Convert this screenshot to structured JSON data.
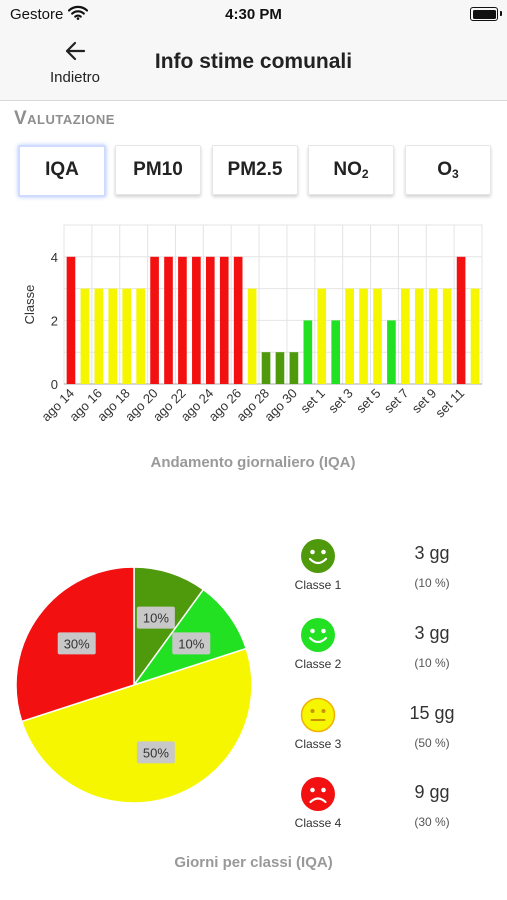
{
  "status_bar": {
    "carrier": "Gestore",
    "time": "4:30 PM"
  },
  "nav": {
    "back_label": "Indietro",
    "title": "Info stime comunali"
  },
  "section": {
    "title": "Valutazione"
  },
  "tabs": [
    {
      "label": "IQA",
      "sub": "",
      "active": true
    },
    {
      "label": "PM10",
      "sub": "",
      "active": false
    },
    {
      "label": "PM2.5",
      "sub": "",
      "active": false
    },
    {
      "label": "NO",
      "sub": "2",
      "active": false
    },
    {
      "label": "O",
      "sub": "3",
      "active": false
    }
  ],
  "colors": {
    "classe_1": "#4f9a0c",
    "classe_2": "#22e022",
    "classe_3": "#f6f600",
    "classe_4": "#f21010"
  },
  "chart_data": [
    {
      "type": "bar",
      "title": "Andamento giornaliero (IQA)",
      "ylabel": "Classe",
      "ylim": [
        0,
        5
      ],
      "yticks": [
        0,
        2,
        4
      ],
      "grid": true,
      "x_tick_labels": [
        "ago 14",
        "ago 16",
        "ago 18",
        "ago 20",
        "ago 22",
        "ago 24",
        "ago 26",
        "ago 28",
        "ago 30",
        "set 1",
        "set 3",
        "set 5",
        "set 7",
        "set 9",
        "set 11"
      ],
      "categories": [
        "ago 14",
        "ago 15",
        "ago 16",
        "ago 17",
        "ago 18",
        "ago 19",
        "ago 20",
        "ago 21",
        "ago 22",
        "ago 23",
        "ago 24",
        "ago 25",
        "ago 26",
        "ago 27",
        "ago 28",
        "ago 29",
        "ago 30",
        "ago 31",
        "set 1",
        "set 2",
        "set 3",
        "set 4",
        "set 5",
        "set 6",
        "set 7",
        "set 8",
        "set 9",
        "set 10",
        "set 11",
        "set 12"
      ],
      "values": [
        4,
        3,
        3,
        3,
        3,
        3,
        4,
        4,
        4,
        4,
        4,
        4,
        4,
        3,
        1,
        1,
        1,
        2,
        3,
        2,
        3,
        3,
        3,
        2,
        3,
        3,
        3,
        3,
        4,
        3
      ]
    },
    {
      "type": "pie",
      "title": "Giorni per classi (IQA)",
      "slices": [
        {
          "name": "Classe 1",
          "value": 10,
          "label": "10%"
        },
        {
          "name": "Classe 2",
          "value": 10,
          "label": "10%"
        },
        {
          "name": "Classe 3",
          "value": 50,
          "label": "50%"
        },
        {
          "name": "Classe 4",
          "value": 30,
          "label": "30%"
        }
      ]
    }
  ],
  "legend": [
    {
      "label": "Classe 1",
      "days": "3 gg",
      "pct": "(10 %)",
      "face": "happy",
      "icon": "smile-face-icon"
    },
    {
      "label": "Classe 2",
      "days": "3 gg",
      "pct": "(10 %)",
      "face": "happy",
      "icon": "smile-face-icon"
    },
    {
      "label": "Classe 3",
      "days": "15 gg",
      "pct": "(50 %)",
      "face": "neutral",
      "icon": "neutral-face-icon"
    },
    {
      "label": "Classe 4",
      "days": "9 gg",
      "pct": "(30 %)",
      "face": "sad",
      "icon": "sad-face-icon"
    }
  ]
}
